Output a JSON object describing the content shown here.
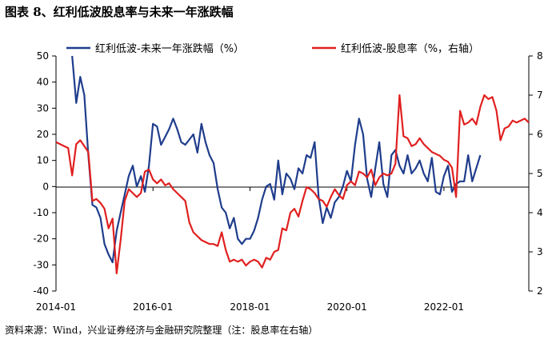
{
  "header": {
    "title": "图表 8、红利低波股息率与未来一年涨跌幅"
  },
  "footer": {
    "source": "资料来源：Wind，兴业证券经济与金融研究院整理（注：股息率在右轴）"
  },
  "colors": {
    "series1": "#1f3d8c",
    "series2": "#e02020",
    "axis": "#000000"
  },
  "chart_data": {
    "type": "line",
    "title": "图表 8、红利低波股息率与未来一年涨跌幅",
    "x_ticks": [
      "2014-01",
      "2016-01",
      "2018-01",
      "2020-01",
      "2022-01"
    ],
    "x_range": [
      "2014-01",
      "2023-10"
    ],
    "y_left": {
      "range": [
        -40,
        50
      ],
      "ticks": [
        -40,
        -30,
        -20,
        -10,
        0,
        10,
        20,
        30,
        40,
        50
      ]
    },
    "y_right": {
      "range": [
        2,
        8
      ],
      "ticks": [
        2,
        3,
        4,
        5,
        6,
        7,
        8
      ]
    },
    "legend_placement": "top",
    "grid": false,
    "series": [
      {
        "name": "红利低波-未来一年涨跌幅（%）",
        "axis": "left",
        "color": "#1f3d8c",
        "x": [
          "2014-05",
          "2014-06",
          "2014-07",
          "2014-08",
          "2014-09",
          "2014-10",
          "2014-11",
          "2014-12",
          "2015-01",
          "2015-02",
          "2015-03",
          "2015-04",
          "2015-05",
          "2015-06",
          "2015-07",
          "2015-08",
          "2015-09",
          "2015-10",
          "2015-11",
          "2015-12",
          "2016-01",
          "2016-02",
          "2016-03",
          "2016-04",
          "2016-05",
          "2016-06",
          "2016-07",
          "2016-08",
          "2016-09",
          "2016-10",
          "2016-11",
          "2016-12",
          "2017-01",
          "2017-02",
          "2017-03",
          "2017-04",
          "2017-05",
          "2017-06",
          "2017-07",
          "2017-08",
          "2017-09",
          "2017-10",
          "2017-11",
          "2017-12",
          "2018-01",
          "2018-02",
          "2018-03",
          "2018-04",
          "2018-05",
          "2018-06",
          "2018-07",
          "2018-08",
          "2018-09",
          "2018-10",
          "2018-11",
          "2018-12",
          "2019-01",
          "2019-02",
          "2019-03",
          "2019-04",
          "2019-05",
          "2019-06",
          "2019-07",
          "2019-08",
          "2019-09",
          "2019-10",
          "2019-11",
          "2019-12",
          "2020-01",
          "2020-02",
          "2020-03",
          "2020-04",
          "2020-05",
          "2020-06",
          "2020-07",
          "2020-08",
          "2020-09",
          "2020-10",
          "2020-11",
          "2020-12",
          "2021-01",
          "2021-02",
          "2021-03",
          "2021-04",
          "2021-05",
          "2021-06",
          "2021-07",
          "2021-08",
          "2021-09",
          "2021-10",
          "2021-11",
          "2021-12",
          "2022-01",
          "2022-02",
          "2022-03",
          "2022-04",
          "2022-05",
          "2022-06",
          "2022-07",
          "2022-08",
          "2022-09",
          "2022-10"
        ],
        "values": [
          50,
          32,
          42,
          35,
          12,
          -7,
          -8,
          -12,
          -22,
          -26,
          -29,
          -17,
          -10,
          -3,
          4,
          8,
          0,
          4,
          -2,
          8,
          24,
          23,
          16,
          19,
          22,
          26,
          22,
          17,
          16,
          18,
          20,
          13,
          24,
          17,
          12,
          9,
          -1,
          -8,
          -10,
          -16,
          -12,
          -20,
          -22,
          -20,
          -20,
          -17,
          -12,
          -5,
          0,
          1,
          -5,
          10,
          -3,
          5,
          3,
          -1,
          7,
          5,
          12,
          11,
          17,
          -4,
          -14,
          -8,
          -12,
          -6,
          -4,
          0,
          6,
          2,
          16,
          26,
          20,
          3,
          -4,
          7,
          17,
          1,
          -4,
          12,
          14,
          8,
          5,
          12,
          5,
          7,
          10,
          5,
          2,
          11,
          -2,
          -3,
          4,
          8,
          -2,
          1,
          2,
          2,
          12,
          2,
          7,
          12
        ]
      },
      {
        "name": "红利低波-股息率（%，右轴）",
        "axis": "right",
        "color": "#e02020",
        "x": [
          "2014-01",
          "2014-02",
          "2014-03",
          "2014-04",
          "2014-05",
          "2014-06",
          "2014-07",
          "2014-08",
          "2014-09",
          "2014-10",
          "2014-11",
          "2014-12",
          "2015-01",
          "2015-02",
          "2015-03",
          "2015-04",
          "2015-05",
          "2015-06",
          "2015-07",
          "2015-08",
          "2015-09",
          "2015-10",
          "2015-11",
          "2015-12",
          "2016-01",
          "2016-02",
          "2016-03",
          "2016-04",
          "2016-05",
          "2016-06",
          "2016-07",
          "2016-08",
          "2016-09",
          "2016-10",
          "2016-11",
          "2016-12",
          "2017-01",
          "2017-02",
          "2017-03",
          "2017-04",
          "2017-05",
          "2017-06",
          "2017-07",
          "2017-08",
          "2017-09",
          "2017-10",
          "2017-11",
          "2017-12",
          "2018-01",
          "2018-02",
          "2018-03",
          "2018-04",
          "2018-05",
          "2018-06",
          "2018-07",
          "2018-08",
          "2018-09",
          "2018-10",
          "2018-11",
          "2018-12",
          "2019-01",
          "2019-02",
          "2019-03",
          "2019-04",
          "2019-05",
          "2019-06",
          "2019-07",
          "2019-08",
          "2019-09",
          "2019-10",
          "2019-11",
          "2019-12",
          "2020-01",
          "2020-02",
          "2020-03",
          "2020-04",
          "2020-05",
          "2020-06",
          "2020-07",
          "2020-08",
          "2020-09",
          "2020-10",
          "2020-11",
          "2020-12",
          "2021-01",
          "2021-02",
          "2021-03",
          "2021-04",
          "2021-05",
          "2021-06",
          "2021-07",
          "2021-08",
          "2021-09",
          "2021-10",
          "2021-11",
          "2021-12",
          "2022-01",
          "2022-02",
          "2022-03",
          "2022-04",
          "2022-05",
          "2022-06",
          "2022-07",
          "2022-08",
          "2022-09",
          "2022-10",
          "2022-11",
          "2022-12",
          "2023-01",
          "2023-02",
          "2023-03",
          "2023-04",
          "2023-05",
          "2023-06",
          "2023-07",
          "2023-08",
          "2023-09",
          "2023-10"
        ],
        "values": [
          5.8,
          5.75,
          5.7,
          5.65,
          4.95,
          5.75,
          5.85,
          5.7,
          5.55,
          4.3,
          4.35,
          4.25,
          4.1,
          3.6,
          3.85,
          2.45,
          3.3,
          4.3,
          4.6,
          4.5,
          4.4,
          4.5,
          5.05,
          5.1,
          4.85,
          4.75,
          4.85,
          4.7,
          4.75,
          4.6,
          4.5,
          4.4,
          4.3,
          3.75,
          3.5,
          3.4,
          3.3,
          3.25,
          3.2,
          3.2,
          3.15,
          3.5,
          3.05,
          2.75,
          2.8,
          2.75,
          2.8,
          2.65,
          2.75,
          2.8,
          2.75,
          2.6,
          2.85,
          2.8,
          3.0,
          3.05,
          3.6,
          3.55,
          4.0,
          4.1,
          3.9,
          4.3,
          4.65,
          4.6,
          4.5,
          4.35,
          4.3,
          4.15,
          4.4,
          4.6,
          4.45,
          4.35,
          4.7,
          4.8,
          4.7,
          5.05,
          5.0,
          4.9,
          5.1,
          4.7,
          4.9,
          5.0,
          4.95,
          5.0,
          5.25,
          7.0,
          5.95,
          5.9,
          5.7,
          5.75,
          5.9,
          5.75,
          5.65,
          5.55,
          5.5,
          5.45,
          5.35,
          5.3,
          5.15,
          4.4,
          6.6,
          6.25,
          6.3,
          6.4,
          6.25,
          6.7,
          7.0,
          6.9,
          6.95,
          6.6,
          5.85,
          6.15,
          6.2,
          6.35,
          6.3,
          6.35,
          6.4,
          6.3
        ]
      }
    ]
  }
}
